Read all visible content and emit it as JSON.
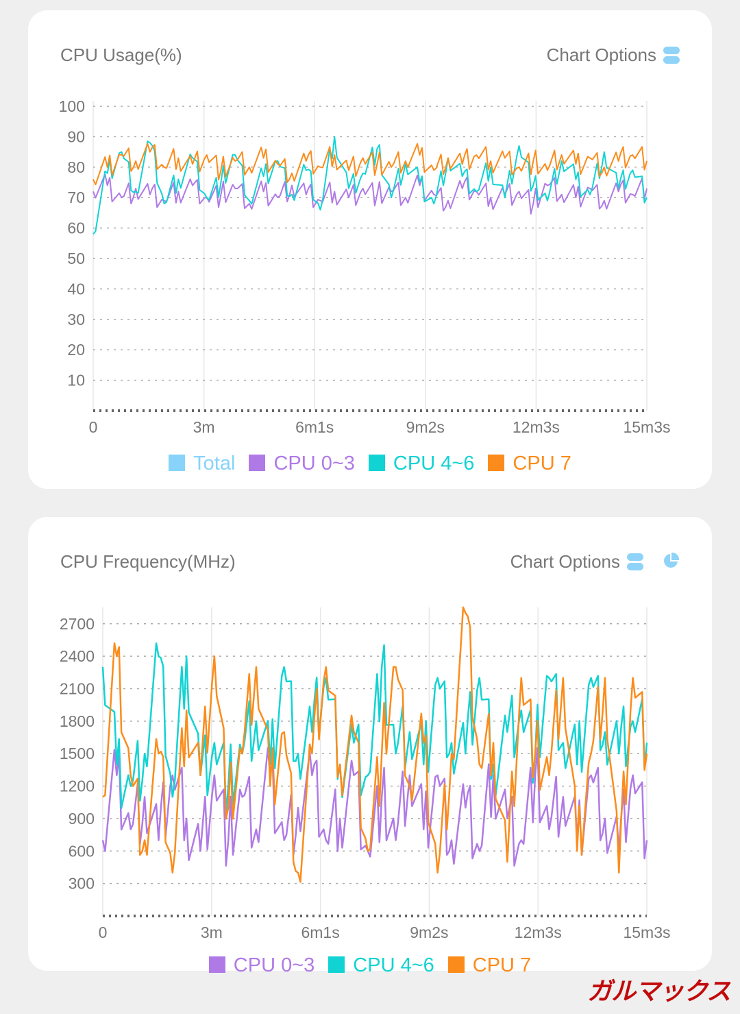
{
  "chart_data": [
    {
      "type": "line",
      "title": "CPU Usage(%)",
      "options_label": "Chart Options",
      "xlabel": "",
      "ylabel": "",
      "xlim": [
        0,
        903
      ],
      "ylim": [
        0,
        100
      ],
      "yticks": [
        "10",
        "20",
        "30",
        "40",
        "50",
        "60",
        "70",
        "80",
        "90",
        "100"
      ],
      "xticks": [
        "0",
        "3m",
        "6m1s",
        "9m2s",
        "12m3s",
        "15m3s"
      ],
      "grid": true,
      "legend_position": "bottom",
      "legend": [
        {
          "name": "Total",
          "color": "#87d3fa"
        },
        {
          "name": "CPU 0~3",
          "color": "#b07ae6"
        },
        {
          "name": "CPU 4~6",
          "color": "#12d3d3"
        },
        {
          "name": "CPU 7",
          "color": "#fb8c1b"
        }
      ],
      "series": [
        {
          "name": "CPU 0~3",
          "color": "#b07ae6",
          "values": [
            72,
            74,
            70,
            73,
            71,
            69,
            72,
            74,
            70,
            71,
            73,
            68,
            72,
            70,
            74,
            71,
            69,
            72,
            70,
            73,
            71,
            72,
            70,
            74,
            71,
            69,
            73,
            72,
            70,
            71,
            72,
            68,
            74,
            71,
            70,
            73,
            69,
            72,
            71,
            73
          ]
        },
        {
          "name": "CPU 4~6",
          "color": "#12d3d3",
          "values": [
            58,
            78,
            85,
            72,
            88,
            68,
            76,
            83,
            70,
            75,
            84,
            69,
            77,
            82,
            71,
            79,
            66,
            90,
            73,
            78,
            86,
            70,
            81,
            75,
            68,
            83,
            77,
            72,
            80,
            70,
            87,
            74,
            69,
            82,
            76,
            71,
            85,
            73,
            79,
            70
          ]
        },
        {
          "name": "CPU 7",
          "color": "#fb8c1b",
          "values": [
            76,
            80,
            84,
            82,
            85,
            80,
            83,
            81,
            84,
            79,
            82,
            80,
            83,
            81,
            78,
            82,
            80,
            84,
            79,
            83,
            81,
            80,
            82,
            84,
            79,
            83,
            81,
            84,
            82,
            83,
            80,
            82,
            79,
            84,
            81,
            83,
            80,
            82,
            84,
            82
          ]
        }
      ]
    },
    {
      "type": "line",
      "title": "CPU Frequency(MHz)",
      "options_label": "Chart Options",
      "xlabel": "",
      "ylabel": "",
      "xlim": [
        0,
        903
      ],
      "ylim": [
        0,
        2800
      ],
      "yticks": [
        "300",
        "600",
        "900",
        "1200",
        "1500",
        "1800",
        "2100",
        "2400",
        "2700"
      ],
      "xticks": [
        "0",
        "3m",
        "6m1s",
        "9m2s",
        "12m3s",
        "15m3s"
      ],
      "grid": true,
      "legend_position": "bottom",
      "legend": [
        {
          "name": "CPU 0~3",
          "color": "#b07ae6"
        },
        {
          "name": "CPU 4~6",
          "color": "#12d3d3"
        },
        {
          "name": "CPU 7",
          "color": "#fb8c1b"
        }
      ],
      "series": [
        {
          "name": "CPU 0~3",
          "color": "#b07ae6",
          "values": [
            700,
            1300,
            800,
            1100,
            700,
            1300,
            900,
            600,
            1300,
            700,
            1100,
            800,
            1300,
            700,
            1000,
            1300,
            700,
            900,
            1300,
            600,
            1100,
            700,
            1300,
            800,
            1300,
            700,
            1000,
            600,
            1300,
            900,
            700,
            1300,
            800,
            1100,
            700,
            1300,
            900,
            600,
            1300,
            700
          ]
        },
        {
          "name": "CPU 4~6",
          "color": "#12d3d3",
          "values": [
            2300,
            1400,
            1200,
            1500,
            2400,
            1100,
            2400,
            1300,
            1600,
            1200,
            1500,
            1800,
            1400,
            2300,
            1500,
            1700,
            2200,
            1400,
            1600,
            1300,
            2300,
            1500,
            1700,
            1400,
            2200,
            1600,
            1500,
            2200,
            1400,
            1700,
            1900,
            1500,
            2200,
            1600,
            1400,
            2200,
            1700,
            1500,
            1800,
            1600
          ]
        },
        {
          "name": "CPU 7",
          "color": "#fb8c1b",
          "values": [
            1100,
            2400,
            1300,
            700,
            1500,
            400,
            1900,
            1300,
            2400,
            1000,
            1500,
            2300,
            1200,
            1700,
            400,
            1500,
            2300,
            1400,
            1700,
            600,
            1500,
            2300,
            1200,
            1600,
            400,
            1500,
            2800,
            1400,
            1600,
            500,
            2200,
            1500,
            1300,
            2200,
            600,
            1500,
            2200,
            400,
            2200,
            1500
          ]
        }
      ]
    }
  ],
  "watermark": "ガルマックス"
}
